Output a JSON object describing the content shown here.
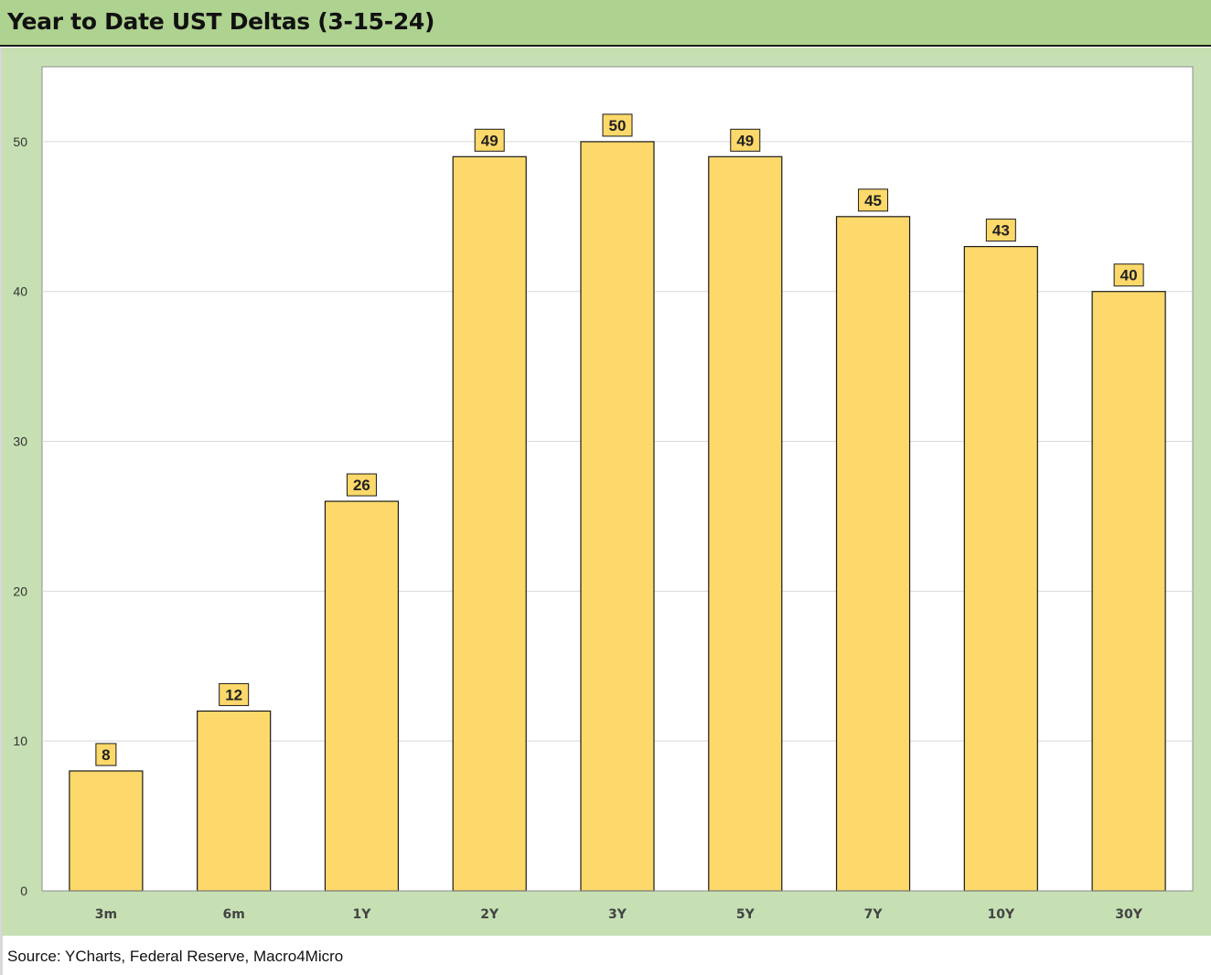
{
  "title": "Year to Date UST Deltas (3-15-24)",
  "source": "Source: YCharts, Federal Reserve, Macro4Micro",
  "colors": {
    "header_bg": "#aed28f",
    "chart_bg": "#c6e0b4",
    "plot_bg": "#ffffff",
    "bar_fill": "#fcd96a",
    "bar_stroke": "#1a1a1a",
    "gridline": "#d9d9d9"
  },
  "chart_data": {
    "type": "bar",
    "title": "Year to Date UST Deltas (3-15-24)",
    "categories": [
      "3m",
      "6m",
      "1Y",
      "2Y",
      "3Y",
      "5Y",
      "7Y",
      "10Y",
      "30Y"
    ],
    "values": [
      8,
      12,
      26,
      49,
      50,
      49,
      45,
      43,
      40
    ],
    "xlabel": "",
    "ylabel": "",
    "ylim": [
      0,
      55
    ],
    "yticks": [
      0,
      10,
      20,
      30,
      40,
      50
    ],
    "grid": true,
    "data_labels": true,
    "legend": "none"
  }
}
